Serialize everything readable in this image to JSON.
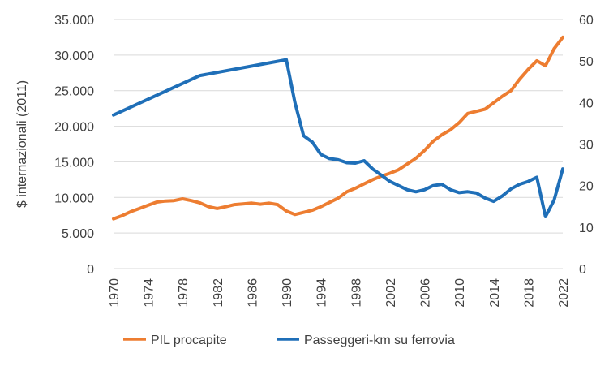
{
  "chart_data": {
    "type": "line",
    "ylabel": "$ internazionali (2011)",
    "ylim": [
      0,
      35000
    ],
    "y2lim": [
      0,
      60
    ],
    "yticks": [
      "0",
      "5.000",
      "10.000",
      "15.000",
      "20.000",
      "25.000",
      "30.000",
      "35.000"
    ],
    "y2ticks": [
      "0",
      "10",
      "20",
      "30",
      "40",
      "50",
      "60"
    ],
    "xticks": [
      "1970",
      "1974",
      "1978",
      "1982",
      "1986",
      "1990",
      "1994",
      "1998",
      "2002",
      "2006",
      "2010",
      "2014",
      "2018",
      "2022"
    ],
    "grid": "horizontal",
    "legend": "bottom",
    "series": [
      {
        "name": "PIL procapite",
        "axis": "left",
        "color": "#ED7D31",
        "x": [
          1970,
          1971,
          1972,
          1973,
          1974,
          1975,
          1976,
          1977,
          1978,
          1979,
          1980,
          1981,
          1982,
          1983,
          1984,
          1985,
          1986,
          1987,
          1988,
          1989,
          1990,
          1991,
          1992,
          1993,
          1994,
          1995,
          1996,
          1997,
          1998,
          1999,
          2000,
          2001,
          2002,
          2003,
          2004,
          2005,
          2006,
          2007,
          2008,
          2009,
          2010,
          2011,
          2012,
          2013,
          2014,
          2015,
          2016,
          2017,
          2018,
          2019,
          2020,
          2021,
          2022
        ],
        "values": [
          7000,
          7450,
          8000,
          8450,
          8900,
          9350,
          9500,
          9550,
          9800,
          9550,
          9250,
          8700,
          8450,
          8700,
          9000,
          9100,
          9200,
          9050,
          9200,
          9000,
          8100,
          7600,
          7900,
          8200,
          8700,
          9300,
          9900,
          10800,
          11300,
          11900,
          12500,
          13000,
          13400,
          13900,
          14700,
          15500,
          16600,
          17900,
          18800,
          19500,
          20500,
          21800,
          22100,
          22400,
          23300,
          24200,
          25000,
          26600,
          28000,
          29200,
          28500,
          30900,
          32500
        ]
      },
      {
        "name": "Passeggeri-km su ferrovia",
        "axis": "right",
        "color": "#1F6FB8",
        "x": [
          1970,
          1980,
          1990,
          1991,
          1992,
          1993,
          1994,
          1995,
          1996,
          1997,
          1998,
          1999,
          2000,
          2001,
          2002,
          2003,
          2004,
          2005,
          2006,
          2007,
          2008,
          2009,
          2010,
          2011,
          2012,
          2013,
          2014,
          2015,
          2016,
          2017,
          2018,
          2019,
          2020,
          2021,
          2022
        ],
        "values": [
          37,
          46.5,
          50.3,
          40,
          32,
          30.5,
          27.5,
          26.5,
          26.2,
          25.5,
          25.4,
          26,
          24,
          22.5,
          21,
          20,
          19,
          18.5,
          19,
          20,
          20.3,
          19,
          18.3,
          18.5,
          18.2,
          17,
          16.2,
          17.5,
          19.2,
          20.3,
          21,
          22,
          12.5,
          16.5,
          24
        ]
      }
    ]
  }
}
